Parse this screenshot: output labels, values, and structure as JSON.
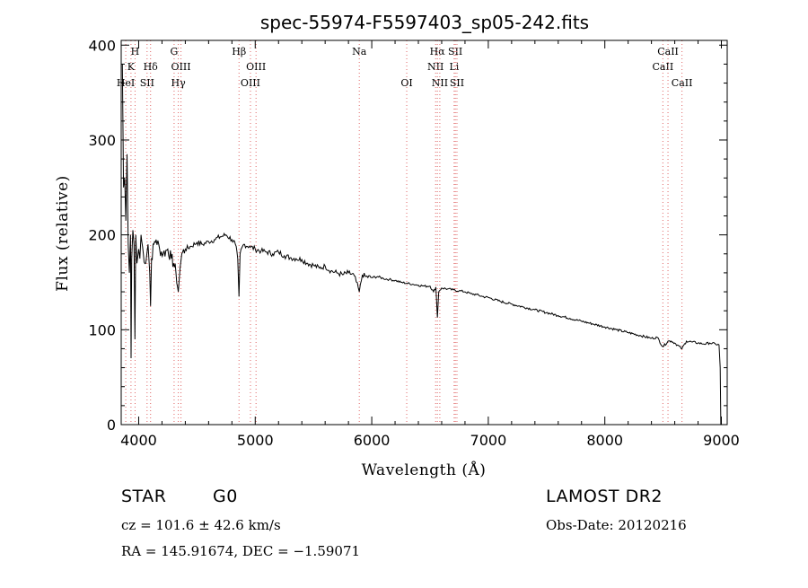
{
  "chart_data": {
    "type": "line",
    "title": "spec-55974-F5597403_sp05-242.fits",
    "xlabel": "Wavelength (Å)",
    "ylabel": "Flux (relative)",
    "xlim": [
      3850,
      9050
    ],
    "ylim": [
      0,
      405
    ],
    "x_ticks": [
      4000,
      5000,
      6000,
      7000,
      8000,
      9000
    ],
    "y_ticks": [
      0,
      100,
      200,
      300,
      400
    ],
    "grid": false,
    "series": [
      {
        "x": [
          3860,
          3870,
          3880,
          3890,
          3900,
          3910,
          3920,
          3930,
          3935,
          3940,
          3950,
          3960,
          3968,
          3975,
          3985,
          4000,
          4010,
          4020,
          4040,
          4060,
          4080,
          4095,
          4102,
          4110,
          4130,
          4150,
          4180,
          4210,
          4250,
          4280,
          4300,
          4320,
          4340,
          4355,
          4370,
          4400,
          4450,
          4500,
          4550,
          4600,
          4650,
          4700,
          4750,
          4800,
          4830,
          4850,
          4861,
          4870,
          4900,
          4950,
          5000,
          5050,
          5100,
          5150,
          5200,
          5250,
          5300,
          5350,
          5400,
          5450,
          5500,
          5550,
          5600,
          5650,
          5700,
          5750,
          5800,
          5850,
          5893,
          5920,
          5950,
          6000,
          6050,
          6100,
          6150,
          6200,
          6250,
          6300,
          6350,
          6400,
          6450,
          6500,
          6530,
          6550,
          6563,
          6575,
          6600,
          6650,
          6700,
          6750,
          6800,
          6850,
          6900,
          6950,
          7000,
          7100,
          7200,
          7300,
          7400,
          7500,
          7600,
          7700,
          7800,
          7900,
          8000,
          8100,
          8200,
          8300,
          8400,
          8450,
          8498,
          8542,
          8570,
          8600,
          8662,
          8700,
          8750,
          8800,
          8850,
          8900,
          8950,
          8980,
          8990,
          8995
        ],
        "y": [
          380,
          250,
          260,
          215,
          285,
          190,
          160,
          200,
          70,
          175,
          205,
          190,
          90,
          200,
          170,
          185,
          175,
          200,
          180,
          170,
          190,
          160,
          125,
          175,
          190,
          195,
          185,
          180,
          185,
          175,
          170,
          160,
          140,
          165,
          180,
          185,
          188,
          192,
          190,
          193,
          195,
          198,
          200,
          195,
          190,
          175,
          135,
          180,
          190,
          188,
          185,
          183,
          182,
          180,
          182,
          178,
          176,
          175,
          174,
          170,
          168,
          165,
          167,
          162,
          160,
          158,
          160,
          157,
          140,
          158,
          156,
          155,
          156,
          154,
          153,
          152,
          150,
          149,
          148,
          147,
          146,
          146,
          140,
          145,
          113,
          140,
          144,
          143,
          142,
          141,
          140,
          138,
          137,
          135,
          134,
          130,
          127,
          124,
          121,
          118,
          115,
          112,
          109,
          106,
          103,
          100,
          97,
          94,
          91,
          92,
          82,
          88,
          88,
          86,
          80,
          88,
          87,
          86,
          85,
          86,
          85,
          84,
          60,
          0
        ]
      }
    ],
    "line_markers": [
      {
        "wave": 3889,
        "label": "HeI",
        "row": 3
      },
      {
        "wave": 3934,
        "label": "K",
        "row": 2
      },
      {
        "wave": 3969,
        "label": "H",
        "row": 1
      },
      {
        "wave": 4072,
        "label": "SII",
        "row": 3
      },
      {
        "wave": 4102,
        "label": "Hδ",
        "row": 2
      },
      {
        "wave": 4304,
        "label": "G",
        "row": 1
      },
      {
        "wave": 4340,
        "label": "Hγ",
        "row": 3
      },
      {
        "wave": 4363,
        "label": "OIII",
        "row": 2
      },
      {
        "wave": 4861,
        "label": "Hβ",
        "row": 1
      },
      {
        "wave": 4959,
        "label": "OIII",
        "row": 3
      },
      {
        "wave": 5007,
        "label": "OIII",
        "row": 2
      },
      {
        "wave": 5893,
        "label": "Na",
        "row": 1
      },
      {
        "wave": 6300,
        "label": "OI",
        "row": 3
      },
      {
        "wave": 6548,
        "label": "NII",
        "row": 2
      },
      {
        "wave": 6563,
        "label": "Hα",
        "row": 1
      },
      {
        "wave": 6584,
        "label": "NII",
        "row": 3
      },
      {
        "wave": 6707,
        "label": "Li",
        "row": 2
      },
      {
        "wave": 6717,
        "label": "SII",
        "row": 1
      },
      {
        "wave": 6731,
        "label": "SII",
        "row": 3
      },
      {
        "wave": 8498,
        "label": "CaII",
        "row": 2
      },
      {
        "wave": 8542,
        "label": "CaII",
        "row": 1
      },
      {
        "wave": 8662,
        "label": "CaII",
        "row": 3
      }
    ]
  },
  "info": {
    "object_class": "STAR",
    "subclass": "G0",
    "survey": "LAMOST DR2",
    "cz": "cz = 101.6 ± 42.6 km/s",
    "obs_date": "Obs-Date: 20120216",
    "radec": "RA = 145.91674, DEC =  −1.59071"
  }
}
